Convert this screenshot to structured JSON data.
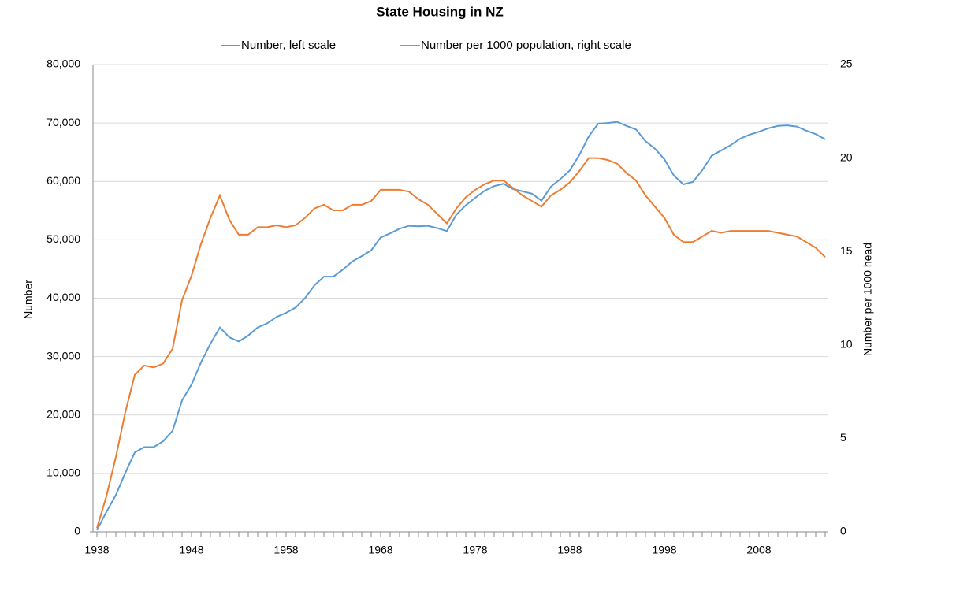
{
  "chart_data": {
    "type": "line",
    "title": "State Housing in NZ",
    "x": [
      1938,
      1939,
      1940,
      1941,
      1942,
      1943,
      1944,
      1945,
      1946,
      1947,
      1948,
      1949,
      1950,
      1951,
      1952,
      1953,
      1954,
      1955,
      1956,
      1957,
      1958,
      1959,
      1960,
      1961,
      1962,
      1963,
      1964,
      1965,
      1966,
      1967,
      1968,
      1969,
      1970,
      1971,
      1972,
      1973,
      1974,
      1975,
      1976,
      1977,
      1978,
      1979,
      1980,
      1981,
      1982,
      1983,
      1984,
      1985,
      1986,
      1987,
      1988,
      1989,
      1990,
      1991,
      1992,
      1993,
      1994,
      1995,
      1996,
      1997,
      1998,
      1999,
      2000,
      2001,
      2002,
      2003,
      2004,
      2005,
      2006,
      2007,
      2008,
      2009,
      2010,
      2011,
      2012,
      2013,
      2014,
      2015
    ],
    "series": [
      {
        "name": "Number, left scale",
        "color": "#5b9bd5",
        "axis": "y",
        "values": [
          300,
          3400,
          6300,
          10100,
          13600,
          14500,
          14500,
          15500,
          17300,
          22500,
          25200,
          29000,
          32200,
          35000,
          33300,
          32600,
          33600,
          35000,
          35700,
          36800,
          37500,
          38400,
          40000,
          42200,
          43700,
          43700,
          44900,
          46300,
          47200,
          48200,
          50400,
          51100,
          51900,
          52400,
          52300,
          52400,
          52000,
          51500,
          54300,
          55900,
          57200,
          58400,
          59200,
          59600,
          58700,
          58300,
          57900,
          56700,
          59100,
          60400,
          61900,
          64500,
          67700,
          69900,
          70000,
          70200,
          69500,
          68900,
          66900,
          65600,
          63800,
          61000,
          59500,
          59900,
          61900,
          64400,
          65300,
          66200,
          67300,
          68000,
          68500,
          69100,
          69500,
          69600,
          69400,
          68700,
          68100,
          67200
        ]
      },
      {
        "name": "Number per 1000 population, right scale",
        "color": "#ed7d31",
        "axis": "y2",
        "values": [
          0.2,
          1.9,
          4.0,
          6.4,
          8.4,
          8.9,
          8.8,
          9.0,
          9.8,
          12.4,
          13.7,
          15.4,
          16.8,
          18.0,
          16.7,
          15.9,
          15.9,
          16.3,
          16.3,
          16.4,
          16.3,
          16.4,
          16.8,
          17.3,
          17.5,
          17.2,
          17.2,
          17.5,
          17.5,
          17.7,
          18.3,
          18.3,
          18.3,
          18.2,
          17.8,
          17.5,
          17.0,
          16.5,
          17.3,
          17.9,
          18.3,
          18.6,
          18.8,
          18.8,
          18.4,
          18.0,
          17.7,
          17.4,
          18.0,
          18.3,
          18.7,
          19.3,
          20.0,
          20.0,
          19.9,
          19.7,
          19.2,
          18.8,
          18.0,
          17.4,
          16.8,
          15.9,
          15.5,
          15.5,
          15.8,
          16.1,
          16.0,
          16.1,
          16.1,
          16.1,
          16.1,
          16.1,
          16.0,
          15.9,
          15.8,
          15.5,
          15.2,
          14.7
        ]
      }
    ],
    "xlim": [
      1938,
      2015
    ],
    "xticks": [
      1938,
      1948,
      1958,
      1968,
      1978,
      1988,
      1998,
      2008
    ],
    "ylim": [
      0,
      80000
    ],
    "yticks": [
      0,
      {
        "value": 10000,
        "label": "10,000"
      },
      {
        "value": 20000,
        "label": "20,000"
      },
      {
        "value": 30000,
        "label": "30,000"
      },
      {
        "value": 40000,
        "label": "40,000"
      },
      {
        "value": 50000,
        "label": "50,000"
      },
      {
        "value": 60000,
        "label": "60,000"
      },
      {
        "value": 70000,
        "label": "70,000"
      },
      {
        "value": 80000,
        "label": "80,000"
      }
    ],
    "y2lim": [
      0,
      25
    ],
    "y2ticks": [
      0,
      5,
      10,
      15,
      20,
      25
    ],
    "ylabel": "Number",
    "y2label": "Number per 1000 head",
    "grid": true,
    "legend": "top"
  }
}
